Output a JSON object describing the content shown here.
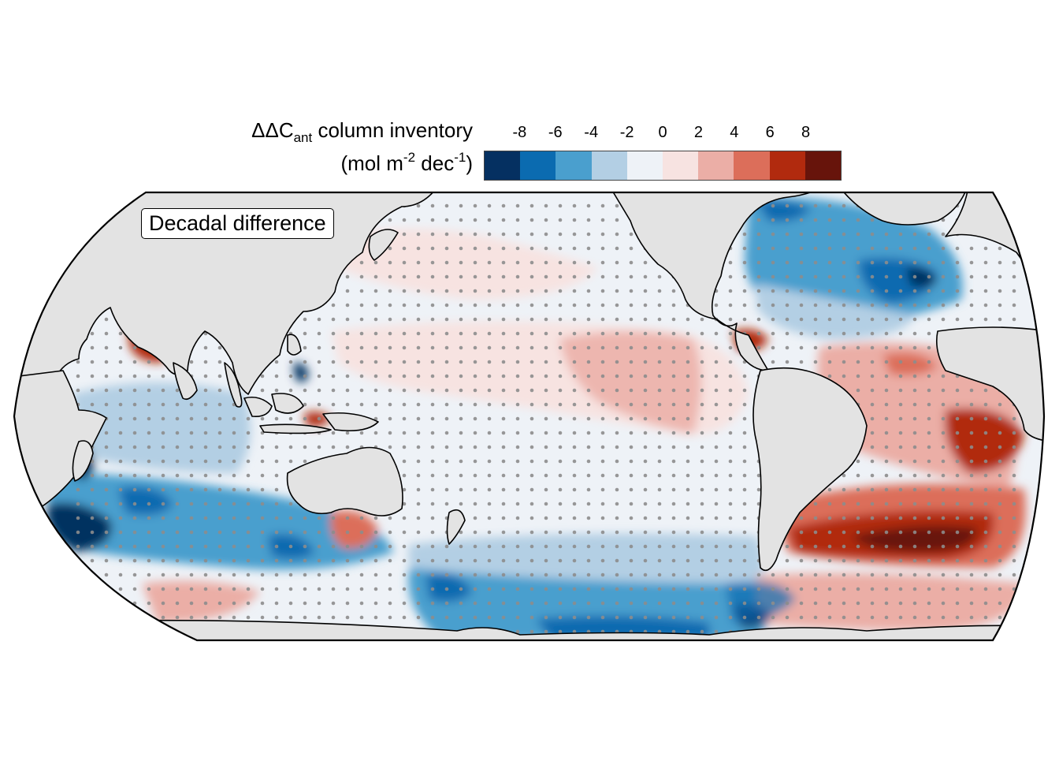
{
  "legend": {
    "title_prefix": "ΔΔC",
    "title_sub": "ant",
    "title_suffix": " column inventory",
    "unit_open": "(mol m",
    "unit_sup1": "-2",
    "unit_mid": " dec",
    "unit_sup2": "-1",
    "unit_close": ")",
    "ticks": [
      "-8",
      "-6",
      "-4",
      "-2",
      "0",
      "2",
      "4",
      "6",
      "8"
    ],
    "colors": [
      "#053061",
      "#0b6bb0",
      "#4a9fce",
      "#b3cfe4",
      "#eef2f7",
      "#f7e3e1",
      "#ebaea6",
      "#dc6e5a",
      "#b12a0e",
      "#67140b"
    ]
  },
  "panel_label": "Decadal difference",
  "map": {
    "projection": "Robinson, Pacific-centered",
    "land_color": "#e3e3e3",
    "stipple_color": "#8c8c8c"
  }
}
